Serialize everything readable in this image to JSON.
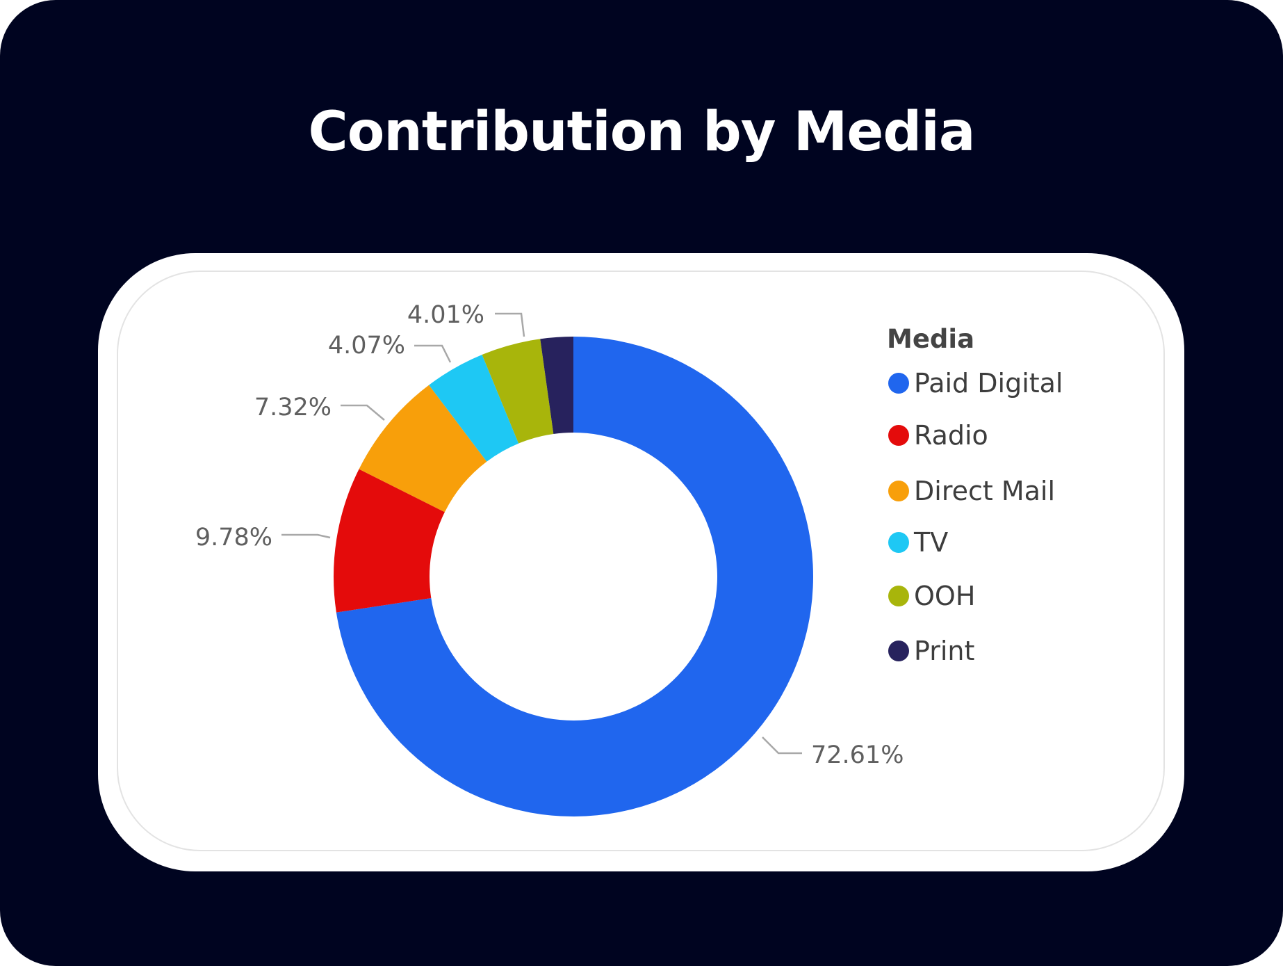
{
  "title": "Contribution by Media",
  "chart_data": {
    "type": "pie",
    "variant": "donut",
    "legend_title": "Media",
    "legend_position": "right",
    "categories": [
      "Paid Digital",
      "Radio",
      "Direct Mail",
      "TV",
      "OOH",
      "Print"
    ],
    "values": [
      72.61,
      9.78,
      7.32,
      4.07,
      4.01,
      2.21
    ],
    "labels": [
      "72.61%",
      "9.78%",
      "7.32%",
      "4.07%",
      "4.01%",
      ""
    ],
    "colors": [
      "#2066ee",
      "#e40b0b",
      "#f89f0a",
      "#1ec8f4",
      "#a8b50b",
      "#27225d"
    ]
  }
}
